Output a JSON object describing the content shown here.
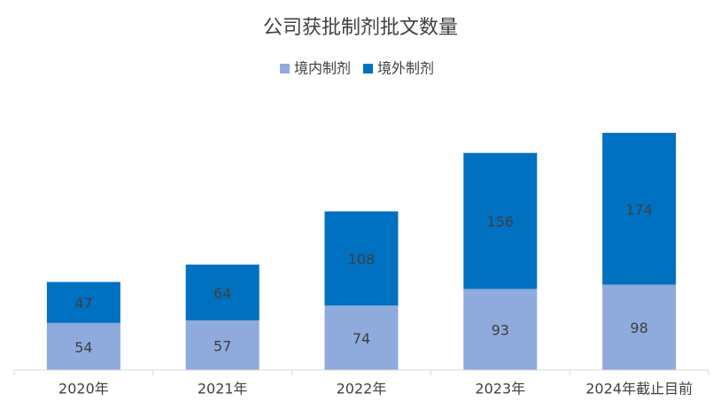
{
  "chart_data": {
    "type": "stacked_bar",
    "title": "公司获批制剂批文数量",
    "categories": [
      "2020年",
      "2021年",
      "2022年",
      "2023年",
      "2024年截止目前"
    ],
    "series": [
      {
        "name": "境内制剂",
        "color": "#8faadc",
        "values": [
          54,
          57,
          74,
          93,
          98
        ]
      },
      {
        "name": "境外制剂",
        "color": "#0070c0",
        "values": [
          47,
          64,
          108,
          156,
          174
        ]
      }
    ],
    "legend": "top"
  }
}
